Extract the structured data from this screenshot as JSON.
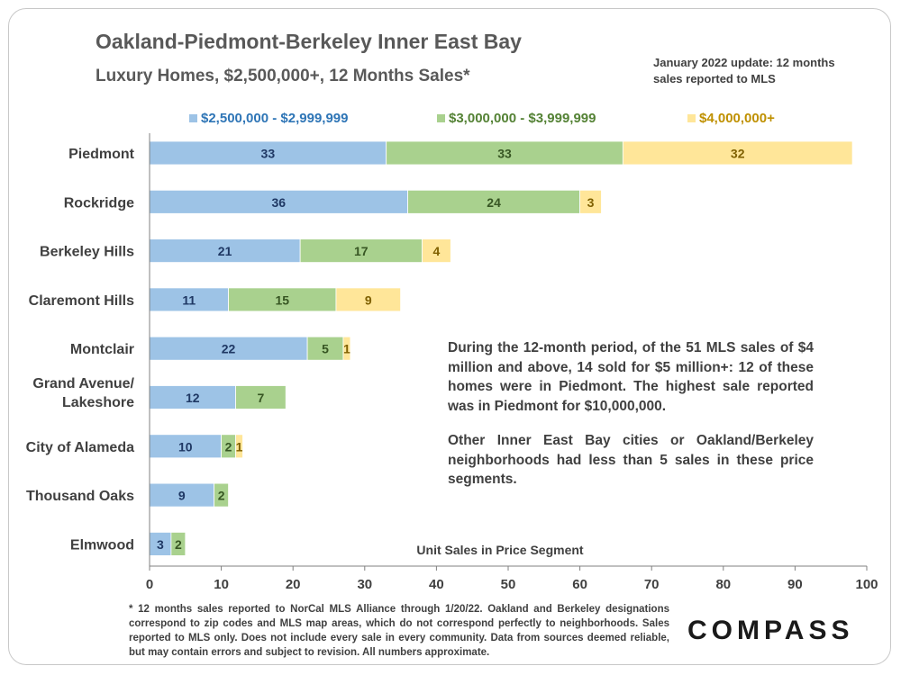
{
  "title": "Oakland-Piedmont-Berkeley Inner East Bay",
  "subtitle": "Luxury Homes, $2,500,000+, 12 Months Sales*",
  "update_note": "January 2022 update: 12 months sales reported to MLS",
  "annotation": {
    "paragraph1": "During the 12-month period, of the 51 MLS sales of $4 million and above, 14 sold for $5 million+: 12 of these homes were in Piedmont. The highest sale reported was in Piedmont for $10,000,000.",
    "paragraph2": "Other Inner East Bay cities or Oakland/Berkeley neighborhoods had less than 5 sales in these price segments."
  },
  "footnote": "* 12 months sales reported to NorCal MLS Alliance through 1/20/22. Oakland and Berkeley designations correspond to zip codes and MLS map areas, which do not correspond perfectly to neighborhoods. Sales reported to MLS only. Does not include every sale in every community. Data from sources deemed reliable, but may contain errors and subject to revision. All numbers approximate.",
  "logo_text": "COMPASS",
  "colors": {
    "series1": "#9dc3e6",
    "series2": "#a9d18e",
    "series3": "#ffe699",
    "legend1_text": "#2e75b6",
    "legend2_text": "#548235",
    "legend3_text": "#bf9000",
    "label1_text": "#1f3864",
    "label2_text": "#375623",
    "label3_text": "#7f6000"
  },
  "chart_data": {
    "type": "bar",
    "orientation": "horizontal",
    "stacked": true,
    "categories": [
      "Piedmont",
      "Rockridge",
      "Berkeley Hills",
      "Claremont Hills",
      "Montclair",
      "Grand Avenue/\nLakeshore",
      "City of Alameda",
      "Thousand Oaks",
      "Elmwood"
    ],
    "series": [
      {
        "name": "$2,500,000 - $2,999,999",
        "values": [
          33,
          36,
          21,
          11,
          22,
          12,
          10,
          9,
          3
        ]
      },
      {
        "name": "$3,000,000 - $3,999,999",
        "values": [
          33,
          24,
          17,
          15,
          5,
          7,
          2,
          2,
          2
        ]
      },
      {
        "name": "$4,000,000+",
        "values": [
          32,
          3,
          4,
          9,
          1,
          0,
          1,
          0,
          0
        ]
      }
    ],
    "xlabel": "Unit Sales in Price Segment",
    "ylabel": "",
    "xlim": [
      0,
      100
    ],
    "xticks": [
      0,
      10,
      20,
      30,
      40,
      50,
      60,
      70,
      80,
      90,
      100
    ],
    "grid": false,
    "legend_position": "top"
  }
}
